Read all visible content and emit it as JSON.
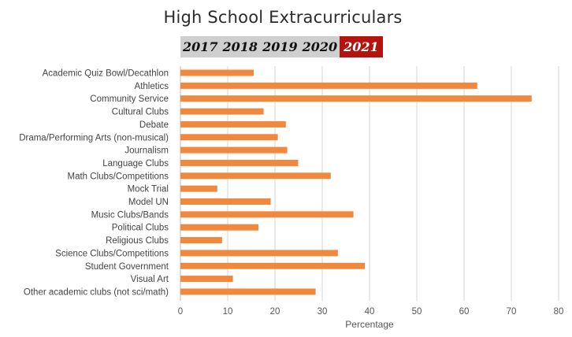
{
  "chart_data": {
    "type": "bar",
    "orientation": "horizontal",
    "title": "High School Extracurriculars",
    "xlabel": "Percentage",
    "ylabel": "",
    "xlim": [
      0,
      80
    ],
    "xticks": [
      0,
      10,
      20,
      30,
      40,
      50,
      60,
      70,
      80
    ],
    "grid": true,
    "bar_color": "#f0883e",
    "categories": [
      "Academic Quiz Bowl/Decathlon",
      "Athletics",
      "Community Service",
      "Cultural Clubs",
      "Debate",
      "Drama/Performing Arts (non-musical)",
      "Journalism",
      "Language Clubs",
      "Math Clubs/Competitions",
      "Mock Trial",
      "Model UN",
      "Music Clubs/Bands",
      "Political Clubs",
      "Religious Clubs",
      "Science Clubs/Competitions",
      "Student Government",
      "Visual Art",
      "Other academic clubs (not sci/math)"
    ],
    "values": [
      15.5,
      62.8,
      74.3,
      17.6,
      22.3,
      20.6,
      22.6,
      24.9,
      31.8,
      7.8,
      19.1,
      36.6,
      16.5,
      8.8,
      33.3,
      39.0,
      11.1,
      28.6
    ]
  },
  "year_tabs": [
    {
      "label": "2017",
      "active": false
    },
    {
      "label": "2018",
      "active": false
    },
    {
      "label": "2019",
      "active": false
    },
    {
      "label": "2020",
      "active": false
    },
    {
      "label": "2021",
      "active": true
    }
  ],
  "colors": {
    "active_tab": "#b31410",
    "inactive_tab": "#cfcfcf",
    "grid": "#d4d4d4"
  }
}
